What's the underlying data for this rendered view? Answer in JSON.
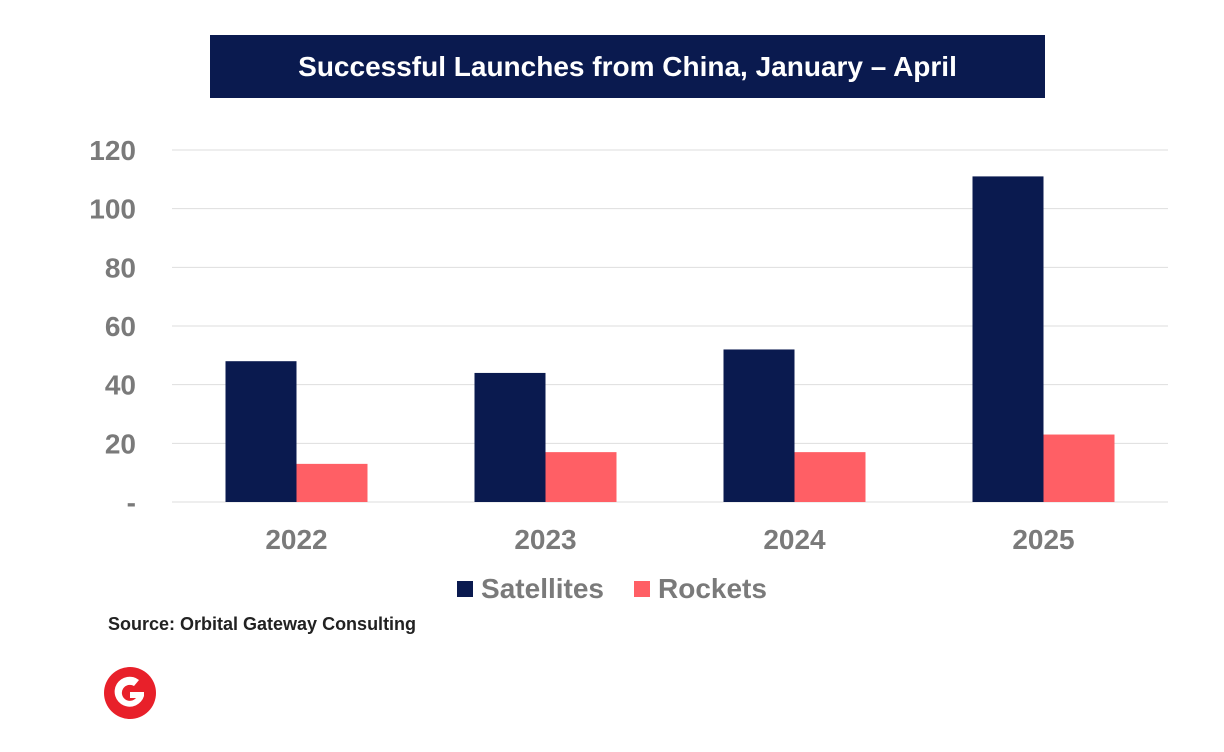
{
  "colors": {
    "satellites": "#0a1a4f",
    "rockets": "#ff5f65",
    "title_bg": "#0a1a4f",
    "axis_text": "#7a7a7a",
    "grid": "#dedede",
    "logo": "#e8202a"
  },
  "source_text": "Source: Orbital Gateway Consulting",
  "logo_icon": "orbital-gateway-g-logo",
  "chart_data": {
    "type": "bar",
    "title": "Successful Launches from China, January – April",
    "categories": [
      "2022",
      "2023",
      "2024",
      "2025"
    ],
    "series": [
      {
        "name": "Satellites",
        "values": [
          48,
          44,
          52,
          111
        ]
      },
      {
        "name": "Rockets",
        "values": [
          13,
          17,
          17,
          23
        ]
      }
    ],
    "ylim": [
      0,
      120
    ],
    "yticks": [
      0,
      20,
      40,
      60,
      80,
      100,
      120
    ],
    "ytick_labels": [
      "-",
      "20",
      "40",
      "60",
      "80",
      "100",
      "120"
    ],
    "xlabel": "",
    "ylabel": "",
    "grid": true,
    "legend_position": "bottom"
  }
}
